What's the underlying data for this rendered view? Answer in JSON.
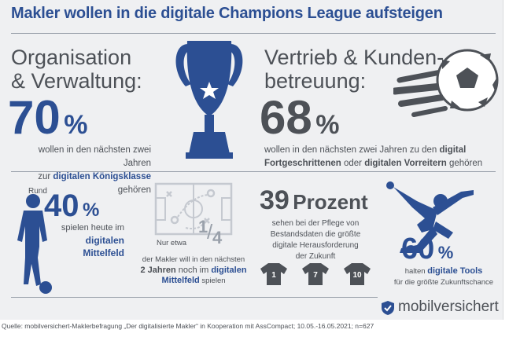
{
  "title": "Makler wollen in die digitale Champions League aufsteigen",
  "org": {
    "heading_line1": "Organisation",
    "heading_line2": "& Verwaltung:",
    "percent": "70",
    "percent_sign": "%",
    "text_line1": "wollen in den nächsten zwei Jahren",
    "text_pre": "zur ",
    "text_highlight": "digitalen Königsklasse",
    "text_post": " gehören"
  },
  "sales": {
    "heading_line1": "Vertrieb & Kunden-",
    "heading_line2": "betreuung:",
    "percent": "68",
    "percent_sign": "%",
    "text_line1_pre": "wollen in den nächsten zwei Jahren zu den ",
    "text_line1_highlight": "digital",
    "text_line2_highlight1": "Fortgeschrittenen",
    "text_line2_mid": " oder ",
    "text_line2_highlight2": "digitalen Vorreitern",
    "text_line2_post": " gehören"
  },
  "midfield": {
    "prefix": "Rund",
    "percent": "40",
    "percent_sign": "%",
    "text_line1": "spielen heute im",
    "highlight_line1": "digitalen",
    "highlight_line2": "Mittelfeld"
  },
  "quarter": {
    "fraction_num": "1",
    "fraction_den": "4",
    "text_line1": "Nur etwa",
    "text_line2": "der Makler will in den nächsten",
    "text_line3_dark": "2 Jahren",
    "text_line3_mid": " noch im ",
    "text_line3_highlight": "digitalen",
    "text_line4_highlight": "Mittelfeld",
    "text_line4_post": " spielen"
  },
  "data_care": {
    "number": "39",
    "word": "Prozent",
    "text_line1": "sehen bei der Pflege von",
    "text_line2": "Bestandsdaten die größte",
    "text_line3": "digitale Herausforderung",
    "text_line4": "der Zukunft",
    "shirts": [
      "1",
      "7",
      "10"
    ]
  },
  "tools": {
    "percent": "60",
    "percent_sign": "%",
    "text_pre": "halten ",
    "text_highlight": "digitale Tools",
    "text_line2": "für die größte Zukunftschance"
  },
  "brand": {
    "name": "mobilversichert"
  },
  "source": "Quelle: mobilversichert-Maklerbefragung „Der digitalisierte Makler“ in Kooperation mit AssCompact; 10.05.-16.05.2021; n=627",
  "colors": {
    "blue": "#2c4f93",
    "gray": "#4d5157",
    "panel": "#eff0f2",
    "light_icon": "#c5c9d0"
  }
}
